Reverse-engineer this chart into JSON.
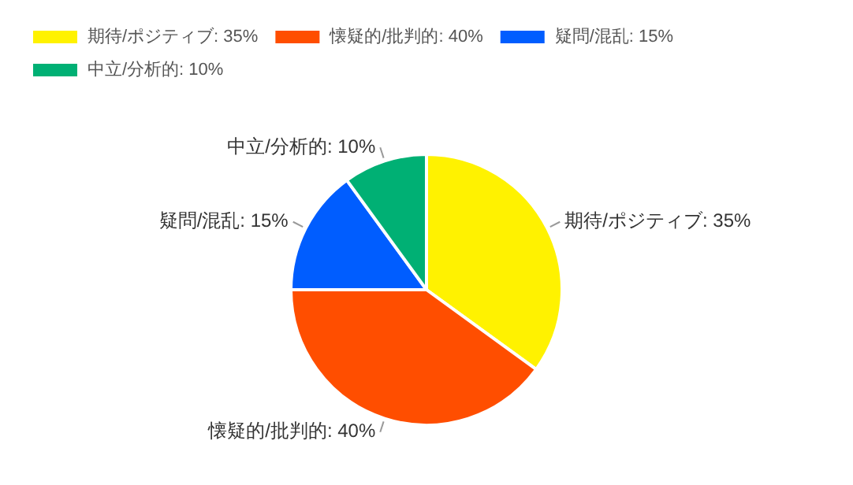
{
  "chart_data": {
    "type": "pie",
    "categories": [
      "期待/ポジティブ: 35%",
      "懐疑的/批判的: 40%",
      "疑問/混乱: 15%",
      "中立/分析的: 10%"
    ],
    "values": [
      35,
      40,
      15,
      10
    ],
    "colors": [
      "#fff200",
      "#ff4e00",
      "#005dff",
      "#00b074"
    ],
    "legend": "top left"
  }
}
